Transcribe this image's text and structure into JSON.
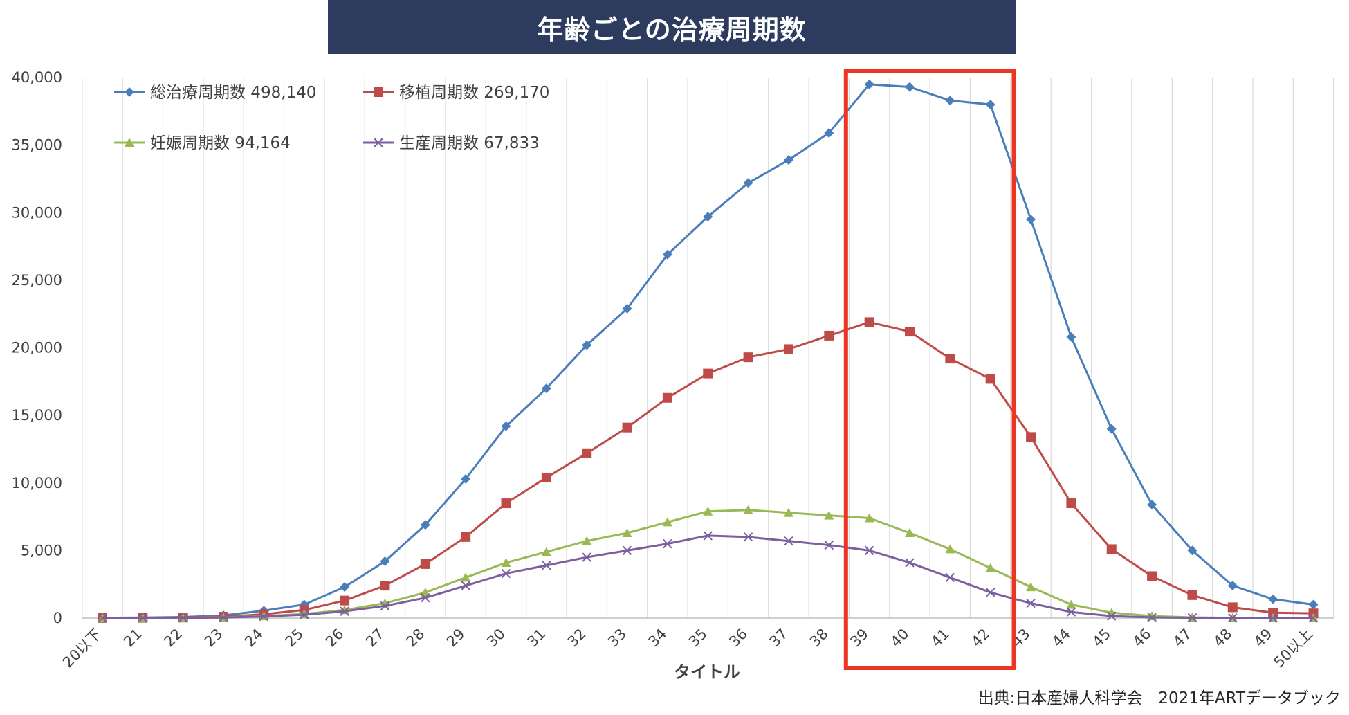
{
  "title": "年齢ごとの治療周期数",
  "source": "出典:日本産婦人科学会　2021年ARTデータブック",
  "colors": {
    "banner": "#2c3b5e",
    "highlight": "#ee3524",
    "grid": "#d9d9d9"
  },
  "chart_data": {
    "type": "line",
    "xlabel": "タイトル",
    "ylabel": "",
    "ylim": [
      0,
      40000
    ],
    "yticks": [
      0,
      5000,
      10000,
      15000,
      20000,
      25000,
      30000,
      35000,
      40000
    ],
    "ytick_labels": [
      "0",
      "5,000",
      "10,000",
      "15,000",
      "20,000",
      "25,000",
      "30,000",
      "35,000",
      "40,000"
    ],
    "grid": "vertical",
    "legend_position": "top-left",
    "categories": [
      "20以下",
      "21",
      "22",
      "23",
      "24",
      "25",
      "26",
      "27",
      "28",
      "29",
      "30",
      "31",
      "32",
      "33",
      "34",
      "35",
      "36",
      "37",
      "38",
      "39",
      "40",
      "41",
      "42",
      "43",
      "44",
      "45",
      "46",
      "47",
      "48",
      "49",
      "50以上"
    ],
    "highlight_range": [
      "39",
      "42"
    ],
    "series": [
      {
        "name": "総治療周期数 498,140",
        "color": "#4a7ebb",
        "marker": "diamond",
        "values": [
          20,
          40,
          80,
          200,
          550,
          1000,
          2300,
          4200,
          6900,
          10300,
          14200,
          17000,
          20200,
          22900,
          26900,
          29700,
          32200,
          33900,
          35900,
          39500,
          39300,
          38300,
          38000,
          29500,
          20800,
          14000,
          8400,
          5000,
          2400,
          1400,
          1000
        ]
      },
      {
        "name": "移植周期数 269,170",
        "color": "#be4b48",
        "marker": "square",
        "values": [
          10,
          20,
          40,
          100,
          280,
          600,
          1300,
          2400,
          4000,
          6000,
          8500,
          10400,
          12200,
          14100,
          16300,
          18100,
          19300,
          19900,
          20900,
          21900,
          21200,
          19200,
          17700,
          13400,
          8500,
          5100,
          3100,
          1700,
          800,
          400,
          350
        ]
      },
      {
        "name": "妊娠周期数 94,164",
        "color": "#98b954",
        "marker": "triangle",
        "values": [
          5,
          10,
          20,
          50,
          150,
          300,
          600,
          1100,
          1900,
          3000,
          4100,
          4900,
          5700,
          6300,
          7100,
          7900,
          8000,
          7800,
          7600,
          7400,
          6300,
          5100,
          3700,
          2300,
          1000,
          400,
          150,
          50,
          20,
          10,
          5
        ]
      },
      {
        "name": "生産周期数 67,833",
        "color": "#7d5fa0",
        "marker": "x",
        "values": [
          5,
          8,
          15,
          40,
          120,
          250,
          500,
          900,
          1500,
          2400,
          3300,
          3900,
          4500,
          5000,
          5500,
          6100,
          6000,
          5700,
          5400,
          5000,
          4100,
          3000,
          1900,
          1100,
          450,
          150,
          50,
          20,
          10,
          5,
          3
        ]
      }
    ]
  }
}
